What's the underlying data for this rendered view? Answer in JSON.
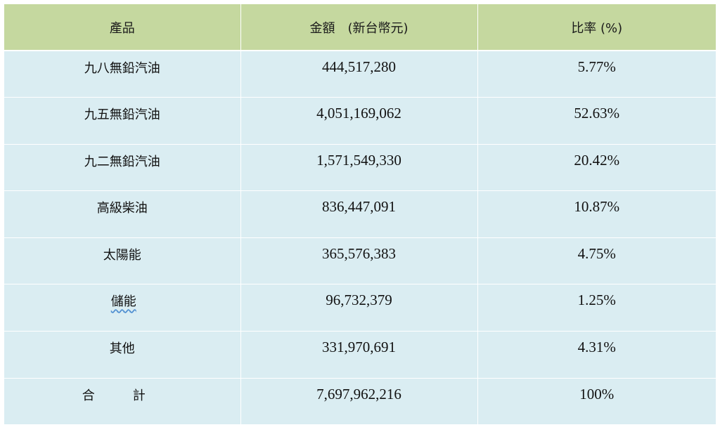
{
  "table": {
    "headers": {
      "product": "產品",
      "amount": "金額　(新台幣元)",
      "ratio": "比率 (%)"
    },
    "rows": [
      {
        "product": "九八無鉛汽油",
        "amount": "444,517,280",
        "ratio": "5.77%"
      },
      {
        "product": "九五無鉛汽油",
        "amount": "4,051,169,062",
        "ratio": "52.63%"
      },
      {
        "product": "九二無鉛汽油",
        "amount": "1,571,549,330",
        "ratio": "20.42%"
      },
      {
        "product": "高級柴油",
        "amount": "836,447,091",
        "ratio": "10.87%"
      },
      {
        "product": "太陽能",
        "amount": "365,576,383",
        "ratio": "4.75%"
      },
      {
        "product": "儲能",
        "amount": "96,732,379",
        "ratio": "1.25%"
      },
      {
        "product": "其他",
        "amount": "331,970,691",
        "ratio": "4.31%"
      },
      {
        "product": "合　　　計",
        "amount": "7,697,962,216",
        "ratio": "100%"
      }
    ]
  },
  "colors": {
    "header_bg": "#c5d89f",
    "row_bg": "#daedf2",
    "underline": "#4f8fd1"
  }
}
